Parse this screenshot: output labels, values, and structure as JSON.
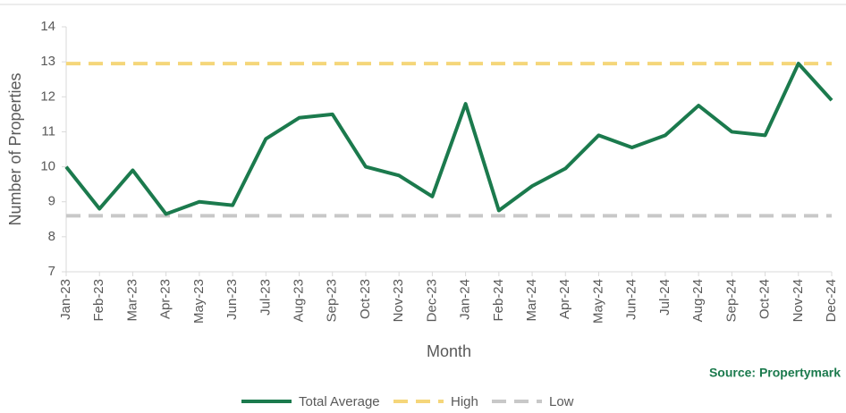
{
  "chart_data": {
    "type": "line",
    "source": "Source: Propertymark",
    "xlabel": "Month",
    "ylabel": "Number of Properties",
    "categories": [
      "Jan-23",
      "Feb-23",
      "Mar-23",
      "Apr-23",
      "May-23",
      "Jun-23",
      "Jul-23",
      "Aug-23",
      "Sep-23",
      "Oct-23",
      "Nov-23",
      "Dec-23",
      "Jan-24",
      "Feb-24",
      "Mar-24",
      "Apr-24",
      "May-24",
      "Jun-24",
      "Jul-24",
      "Aug-24",
      "Sep-24",
      "Oct-24",
      "Nov-24",
      "Dec-24"
    ],
    "series": [
      {
        "name": "Total Average",
        "color": "#1b7a4d",
        "dashed": false,
        "values": [
          10.0,
          8.8,
          9.9,
          8.65,
          9.0,
          8.9,
          10.8,
          11.4,
          11.5,
          10.0,
          9.75,
          9.15,
          11.8,
          8.75,
          9.45,
          9.95,
          10.9,
          10.55,
          10.9,
          11.75,
          11.0,
          10.9,
          12.95,
          11.9
        ]
      },
      {
        "name": "High",
        "color": "#f5d67a",
        "dashed": true,
        "values": [
          12.95,
          12.95,
          12.95,
          12.95,
          12.95,
          12.95,
          12.95,
          12.95,
          12.95,
          12.95,
          12.95,
          12.95,
          12.95,
          12.95,
          12.95,
          12.95,
          12.95,
          12.95,
          12.95,
          12.95,
          12.95,
          12.95,
          12.95,
          12.95
        ]
      },
      {
        "name": "Low",
        "color": "#c8c8c8",
        "dashed": true,
        "values": [
          8.6,
          8.6,
          8.6,
          8.6,
          8.6,
          8.6,
          8.6,
          8.6,
          8.6,
          8.6,
          8.6,
          8.6,
          8.6,
          8.6,
          8.6,
          8.6,
          8.6,
          8.6,
          8.6,
          8.6,
          8.6,
          8.6,
          8.6,
          8.6
        ]
      }
    ],
    "ylim": [
      7,
      14
    ],
    "yticks": [
      7,
      8,
      9,
      10,
      11,
      12,
      13,
      14
    ],
    "grid": false,
    "legend": "bottom"
  }
}
